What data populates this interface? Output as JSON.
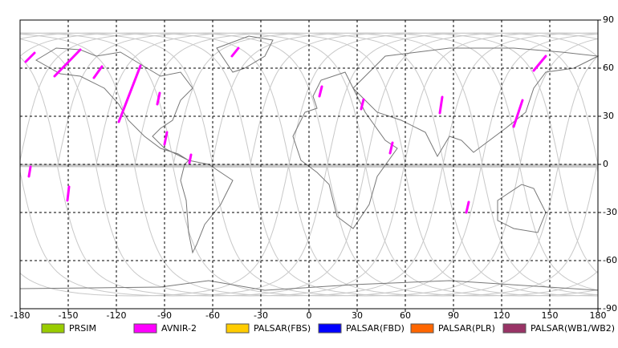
{
  "map": {
    "xlim": [
      -180,
      180
    ],
    "ylim": [
      -90,
      90
    ],
    "xticks": [
      -180,
      -150,
      -120,
      -90,
      -60,
      -30,
      0,
      30,
      60,
      90,
      120,
      150,
      180
    ],
    "yticks": [
      -90,
      -60,
      -30,
      0,
      30,
      60,
      90
    ],
    "grid": true,
    "legend": [
      {
        "name": "PRSIM",
        "color": "#99cc00"
      },
      {
        "name": "AVNIR-2",
        "color": "#ff00ff"
      },
      {
        "name": "PALSAR(FBS)",
        "color": "#ffcc00"
      },
      {
        "name": "PALSAR(FBD)",
        "color": "#0000ff"
      },
      {
        "name": "PALSAR(PLR)",
        "color": "#ff6600"
      },
      {
        "name": "PALSAR(WB1/WB2)",
        "color": "#993366"
      }
    ],
    "footprints": {
      "color": "#ff00ff",
      "segments": [
        {
          "lon": [
            -176.5,
            -171
          ],
          "lat": [
            64,
            69.5
          ]
        },
        {
          "lon": [
            -158.5,
            -142.5
          ],
          "lat": [
            55,
            71.5
          ]
        },
        {
          "lon": [
            -134,
            -129
          ],
          "lat": [
            54,
            61
          ]
        },
        {
          "lon": [
            -118.5,
            -105
          ],
          "lat": [
            26.5,
            61.5
          ]
        },
        {
          "lon": [
            -94.5,
            -93
          ],
          "lat": [
            37.5,
            44.5
          ]
        },
        {
          "lon": [
            -90,
            -88.5
          ],
          "lat": [
            12.5,
            20
          ]
        },
        {
          "lon": [
            -74.5,
            -73.5
          ],
          "lat": [
            1,
            6
          ]
        },
        {
          "lon": [
            -48,
            -44
          ],
          "lat": [
            67.5,
            72.5
          ]
        },
        {
          "lon": [
            -174.5,
            -173.5
          ],
          "lat": [
            -7.5,
            -1.5
          ]
        },
        {
          "lon": [
            -150.5,
            -149.5
          ],
          "lat": [
            -22.5,
            -14
          ]
        },
        {
          "lon": [
            6.5,
            8
          ],
          "lat": [
            42.5,
            48.5
          ]
        },
        {
          "lon": [
            32.5,
            34
          ],
          "lat": [
            34.5,
            40.5
          ]
        },
        {
          "lon": [
            50.5,
            52
          ],
          "lat": [
            7,
            13.5
          ]
        },
        {
          "lon": [
            81.5,
            83
          ],
          "lat": [
            32,
            42
          ]
        },
        {
          "lon": [
            98,
            99.5
          ],
          "lat": [
            -30,
            -23.5
          ]
        },
        {
          "lon": [
            127.5,
            133
          ],
          "lat": [
            23.5,
            40
          ]
        },
        {
          "lon": [
            140,
            147.5
          ],
          "lat": [
            58.5,
            67.5
          ]
        }
      ]
    }
  }
}
